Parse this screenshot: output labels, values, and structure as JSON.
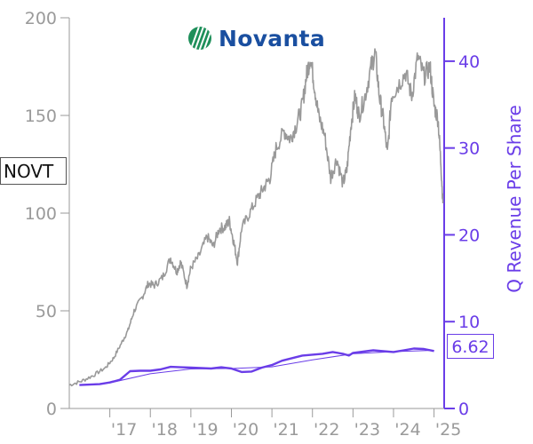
{
  "ticker": "NOVT",
  "company": "Novanta",
  "last_value_label": "6.62",
  "colors": {
    "price": "#999999",
    "revenue": "#6a3de8",
    "revenue_trend": "#6a3de8",
    "axis_left": "#9a9a9a",
    "axis_right": "#6a3de8",
    "logo": "#1a4fa0"
  },
  "chart_data": {
    "type": "line",
    "ylabel_left": "",
    "ylabel_right": "Q Revenue Per Share",
    "xlabel": "",
    "ylim_left": [
      0,
      200
    ],
    "ylim_right": [
      0,
      45
    ],
    "left_ticks": [
      "0",
      "50",
      "100",
      "150",
      "200"
    ],
    "right_ticks": [
      "0",
      "10",
      "20",
      "30",
      "40"
    ],
    "x_ticks": [
      "'17",
      "'18",
      "'19",
      "'20",
      "'21",
      "'22",
      "'23",
      "'24",
      "'25"
    ],
    "x_tick_values": [
      2017,
      2018,
      2019,
      2020,
      2021,
      2022,
      2023,
      2024,
      2025
    ],
    "xlim": [
      2016.0,
      2025.25
    ],
    "series": [
      {
        "axis": "left",
        "points": [
          [
            2016.0,
            12
          ],
          [
            2016.3,
            14
          ],
          [
            2016.6,
            17
          ],
          [
            2016.9,
            21
          ],
          [
            2017.1,
            26
          ],
          [
            2017.3,
            34
          ],
          [
            2017.45,
            40
          ],
          [
            2017.6,
            50
          ],
          [
            2017.8,
            57
          ],
          [
            2017.95,
            64
          ],
          [
            2018.1,
            63
          ],
          [
            2018.3,
            67
          ],
          [
            2018.5,
            77
          ],
          [
            2018.65,
            70
          ],
          [
            2018.75,
            75
          ],
          [
            2018.9,
            63
          ],
          [
            2019.0,
            72
          ],
          [
            2019.2,
            78
          ],
          [
            2019.4,
            88
          ],
          [
            2019.55,
            83
          ],
          [
            2019.7,
            92
          ],
          [
            2019.85,
            93
          ],
          [
            2019.95,
            96
          ],
          [
            2020.05,
            86
          ],
          [
            2020.15,
            75
          ],
          [
            2020.25,
            92
          ],
          [
            2020.45,
            100
          ],
          [
            2020.65,
            108
          ],
          [
            2020.8,
            113
          ],
          [
            2020.95,
            118
          ],
          [
            2021.1,
            133
          ],
          [
            2021.3,
            142
          ],
          [
            2021.45,
            138
          ],
          [
            2021.6,
            145
          ],
          [
            2021.75,
            155
          ],
          [
            2021.85,
            170
          ],
          [
            2021.95,
            180
          ],
          [
            2022.05,
            165
          ],
          [
            2022.15,
            150
          ],
          [
            2022.3,
            140
          ],
          [
            2022.45,
            118
          ],
          [
            2022.6,
            128
          ],
          [
            2022.75,
            115
          ],
          [
            2022.85,
            122
          ],
          [
            2022.95,
            145
          ],
          [
            2023.05,
            160
          ],
          [
            2023.15,
            150
          ],
          [
            2023.3,
            160
          ],
          [
            2023.45,
            175
          ],
          [
            2023.55,
            182
          ],
          [
            2023.65,
            160
          ],
          [
            2023.75,
            148
          ],
          [
            2023.85,
            130
          ],
          [
            2023.95,
            160
          ],
          [
            2024.1,
            165
          ],
          [
            2024.3,
            172
          ],
          [
            2024.45,
            160
          ],
          [
            2024.6,
            180
          ],
          [
            2024.75,
            170
          ],
          [
            2024.9,
            175
          ],
          [
            2025.0,
            155
          ],
          [
            2025.1,
            148
          ],
          [
            2025.17,
            125
          ],
          [
            2025.22,
            105
          ]
        ]
      },
      {
        "axis": "right",
        "points": [
          [
            2016.25,
            2.7
          ],
          [
            2016.5,
            2.75
          ],
          [
            2016.75,
            2.8
          ],
          [
            2017.0,
            3.0
          ],
          [
            2017.25,
            3.3
          ],
          [
            2017.5,
            4.3
          ],
          [
            2017.75,
            4.35
          ],
          [
            2018.0,
            4.35
          ],
          [
            2018.25,
            4.5
          ],
          [
            2018.5,
            4.8
          ],
          [
            2018.75,
            4.75
          ],
          [
            2019.0,
            4.7
          ],
          [
            2019.25,
            4.65
          ],
          [
            2019.5,
            4.6
          ],
          [
            2019.75,
            4.75
          ],
          [
            2020.0,
            4.6
          ],
          [
            2020.25,
            4.2
          ],
          [
            2020.5,
            4.25
          ],
          [
            2020.75,
            4.7
          ],
          [
            2021.0,
            5.0
          ],
          [
            2021.25,
            5.5
          ],
          [
            2021.5,
            5.8
          ],
          [
            2021.75,
            6.1
          ],
          [
            2022.0,
            6.2
          ],
          [
            2022.25,
            6.3
          ],
          [
            2022.5,
            6.5
          ],
          [
            2022.75,
            6.3
          ],
          [
            2022.9,
            6.1
          ],
          [
            2023.0,
            6.4
          ],
          [
            2023.25,
            6.55
          ],
          [
            2023.5,
            6.7
          ],
          [
            2023.75,
            6.6
          ],
          [
            2024.0,
            6.5
          ],
          [
            2024.25,
            6.7
          ],
          [
            2024.5,
            6.9
          ],
          [
            2024.75,
            6.85
          ],
          [
            2025.0,
            6.62
          ]
        ]
      },
      {
        "axis": "right",
        "points": [
          [
            2016.25,
            2.7
          ],
          [
            2017.0,
            2.95
          ],
          [
            2018.0,
            4.0
          ],
          [
            2019.0,
            4.55
          ],
          [
            2020.0,
            4.6
          ],
          [
            2021.0,
            4.8
          ],
          [
            2022.0,
            5.6
          ],
          [
            2023.0,
            6.3
          ],
          [
            2024.0,
            6.55
          ],
          [
            2025.0,
            6.7
          ]
        ]
      }
    ]
  }
}
